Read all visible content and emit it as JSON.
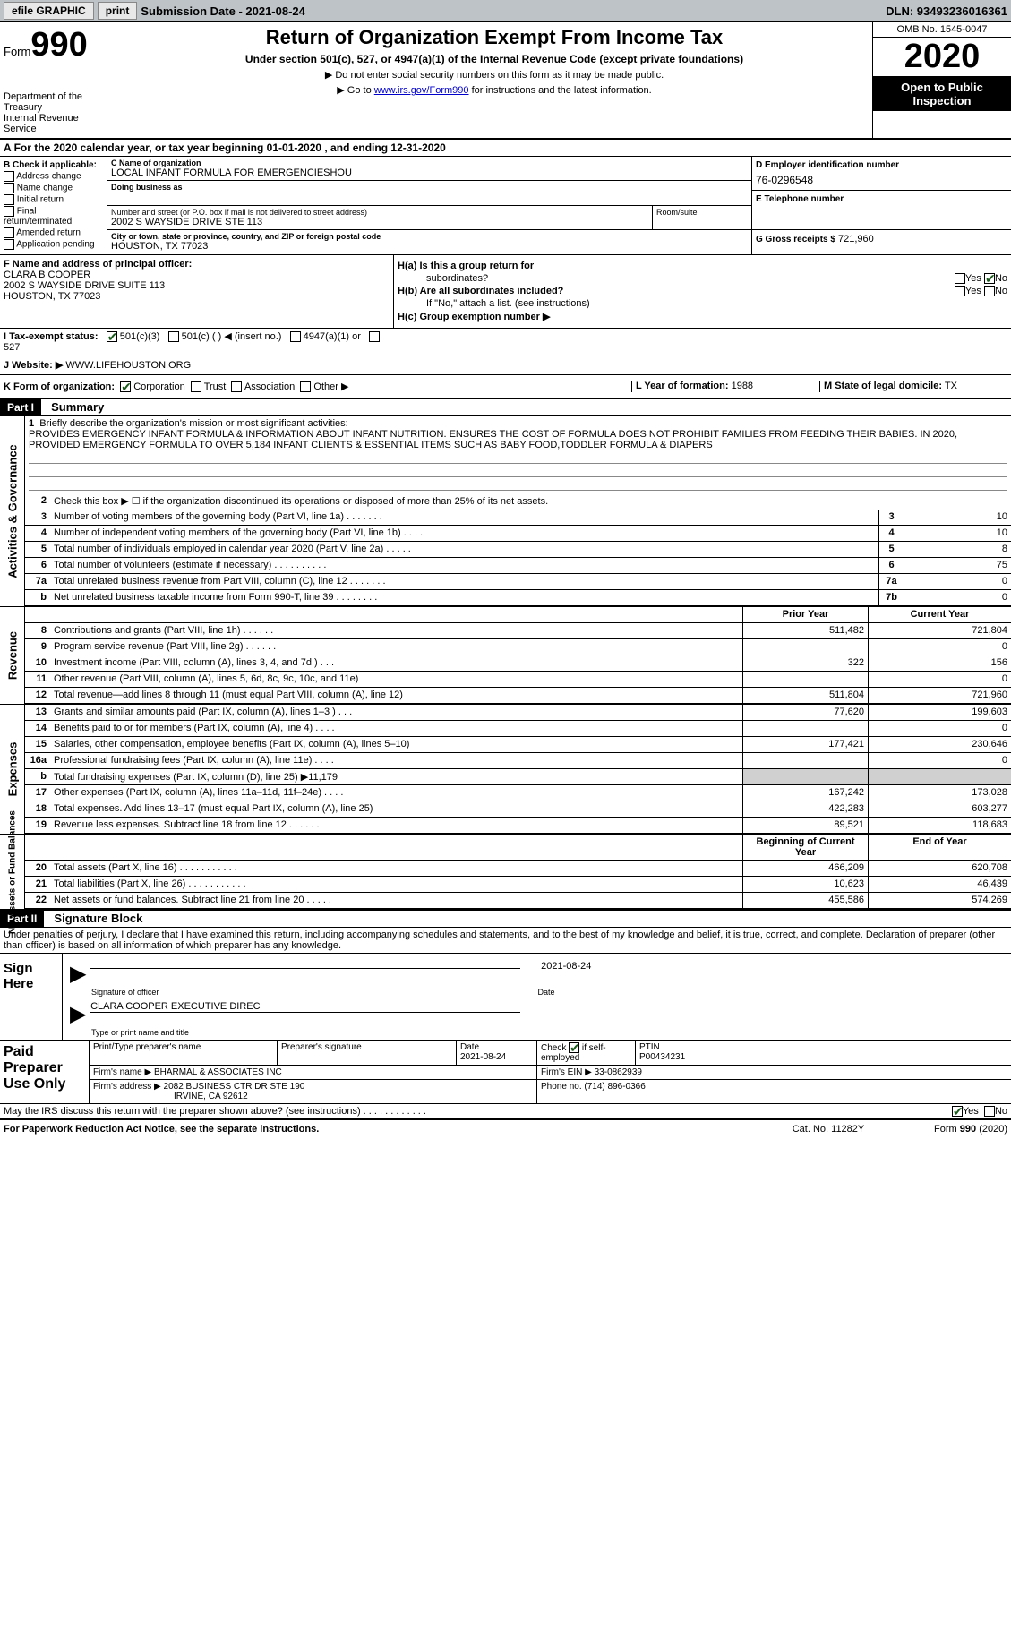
{
  "topbar": {
    "efile": "efile GRAPHIC",
    "print": "print",
    "submission": "Submission Date - 2021-08-24",
    "dln": "DLN: 93493236016361"
  },
  "header": {
    "form_prefix": "Form",
    "form_number": "990",
    "dept": "Department of the Treasury\nInternal Revenue Service",
    "title": "Return of Organization Exempt From Income Tax",
    "subtitle": "Under section 501(c), 527, or 4947(a)(1) of the Internal Revenue Code (except private foundations)",
    "instr1": "▶ Do not enter social security numbers on this form as it may be made public.",
    "instr2_pre": "▶ Go to ",
    "instr2_link": "www.irs.gov/Form990",
    "instr2_post": " for instructions and the latest information.",
    "omb": "OMB No. 1545-0047",
    "year": "2020",
    "inspect": "Open to Public Inspection"
  },
  "period": "For the 2020 calendar year, or tax year beginning 01-01-2020    , and ending 12-31-2020",
  "section_b": {
    "hd": "B Check if applicable:",
    "items": [
      "Address change",
      "Name change",
      "Initial return",
      "Final return/terminated",
      "Amended return",
      "Application pending"
    ]
  },
  "section_c": {
    "name_lbl": "C Name of organization",
    "name": "LOCAL INFANT FORMULA FOR EMERGENCIESHOU",
    "dba_lbl": "Doing business as",
    "dba": "",
    "street_lbl": "Number and street (or P.O. box if mail is not delivered to street address)",
    "street": "2002 S WAYSIDE DRIVE STE 113",
    "room_lbl": "Room/suite",
    "room": "",
    "city_lbl": "City or town, state or province, country, and ZIP or foreign postal code",
    "city": "HOUSTON, TX  77023"
  },
  "section_d": {
    "lbl": "D Employer identification number",
    "val": "76-0296548"
  },
  "section_e": {
    "lbl": "E Telephone number",
    "val": ""
  },
  "section_g": {
    "lbl": "G Gross receipts $",
    "val": "721,960"
  },
  "section_f": {
    "lbl": "F  Name and address of principal officer:",
    "name": "CLARA B COOPER",
    "addr1": "2002 S WAYSIDE DRIVE SUITE 113",
    "addr2": "HOUSTON, TX  77023"
  },
  "section_h": {
    "ha_lbl": "H(a)  Is this a group return for",
    "ha_sub": "subordinates?",
    "hb_lbl": "H(b)  Are all subordinates included?",
    "hb_note": "If \"No,\" attach a list. (see instructions)",
    "hc_lbl": "H(c)  Group exemption number ▶"
  },
  "row_i": {
    "lbl": "I   Tax-exempt status:",
    "opts": [
      "501(c)(3)",
      "501(c) (  ) ◀ (insert no.)",
      "4947(a)(1) or",
      "527"
    ]
  },
  "row_j": {
    "lbl": "J   Website: ▶",
    "val": "WWW.LIFEHOUSTON.ORG"
  },
  "row_k": {
    "lbl": "K Form of organization:",
    "opts": [
      "Corporation",
      "Trust",
      "Association",
      "Other ▶"
    ]
  },
  "row_l": {
    "lbl": "L Year of formation:",
    "val": "1988"
  },
  "row_m": {
    "lbl": "M State of legal domicile:",
    "val": "TX"
  },
  "part1": {
    "hdr": "Part I",
    "title": "Summary",
    "q1": "Briefly describe the organization's mission or most significant activities:",
    "mission": "PROVIDES EMERGENCY INFANT FORMULA & INFORMATION ABOUT INFANT NUTRITION. ENSURES THE COST OF FORMULA DOES NOT PROHIBIT FAMILIES FROM FEEDING THEIR BABIES. IN 2020, PROVIDED EMERGENCY FORMULA TO OVER 5,184 INFANT CLIENTS & ESSENTIAL ITEMS SUCH AS BABY FOOD,TODDLER FORMULA & DIAPERS",
    "q2": "Check this box ▶ ☐  if the organization discontinued its operations or disposed of more than 25% of its net assets.",
    "sidebar_ag": "Activities & Governance",
    "sidebar_rev": "Revenue",
    "sidebar_exp": "Expenses",
    "sidebar_na": "Net Assets or Fund Balances",
    "lines_gov": [
      {
        "n": "3",
        "t": "Number of voting members of the governing body (Part VI, line 1a)   .    .    .    .    .    .    .",
        "bn": "3",
        "v": "10"
      },
      {
        "n": "4",
        "t": "Number of independent voting members of the governing body (Part VI, line 1b)   .    .    .    .",
        "bn": "4",
        "v": "10"
      },
      {
        "n": "5",
        "t": "Total number of individuals employed in calendar year 2020 (Part V, line 2a)   .    .    .    .    .",
        "bn": "5",
        "v": "8"
      },
      {
        "n": "6",
        "t": "Total number of volunteers (estimate if necessary)    .    .    .    .    .    .    .    .    .    .",
        "bn": "6",
        "v": "75"
      },
      {
        "n": "7a",
        "t": "Total unrelated business revenue from Part VIII, column (C), line 12   .    .    .    .    .    .    .",
        "bn": "7a",
        "v": "0"
      },
      {
        "n": "b",
        "t": "Net unrelated business taxable income from Form 990-T, line 39    .    .    .    .    .    .    .    .",
        "bn": "7b",
        "v": "0"
      }
    ],
    "col_py": "Prior Year",
    "col_cy": "Current Year",
    "lines_rev": [
      {
        "n": "8",
        "t": "Contributions and grants (Part VIII, line 1h)    .    .    .    .    .    .",
        "py": "511,482",
        "cy": "721,804"
      },
      {
        "n": "9",
        "t": "Program service revenue (Part VIII, line 2g)    .    .    .    .    .    .",
        "py": "",
        "cy": "0"
      },
      {
        "n": "10",
        "t": "Investment income (Part VIII, column (A), lines 3, 4, and 7d )    .    .    .",
        "py": "322",
        "cy": "156"
      },
      {
        "n": "11",
        "t": "Other revenue (Part VIII, column (A), lines 5, 6d, 8c, 9c, 10c, and 11e)",
        "py": "",
        "cy": "0"
      },
      {
        "n": "12",
        "t": "Total revenue—add lines 8 through 11 (must equal Part VIII, column (A), line 12)",
        "py": "511,804",
        "cy": "721,960"
      }
    ],
    "lines_exp": [
      {
        "n": "13",
        "t": "Grants and similar amounts paid (Part IX, column (A), lines 1–3 )   .    .    .",
        "py": "77,620",
        "cy": "199,603"
      },
      {
        "n": "14",
        "t": "Benefits paid to or for members (Part IX, column (A), line 4)   .    .    .    .",
        "py": "",
        "cy": "0"
      },
      {
        "n": "15",
        "t": "Salaries, other compensation, employee benefits (Part IX, column (A), lines 5–10)",
        "py": "177,421",
        "cy": "230,646"
      },
      {
        "n": "16a",
        "t": "Professional fundraising fees (Part IX, column (A), line 11e)    .    .    .    .",
        "py": "",
        "cy": "0"
      },
      {
        "n": "b",
        "t": "Total fundraising expenses (Part IX, column (D), line 25) ▶11,179",
        "py": "shaded",
        "cy": "shaded"
      },
      {
        "n": "17",
        "t": "Other expenses (Part IX, column (A), lines 11a–11d, 11f–24e)    .    .    .    .",
        "py": "167,242",
        "cy": "173,028"
      },
      {
        "n": "18",
        "t": "Total expenses. Add lines 13–17 (must equal Part IX, column (A), line 25)",
        "py": "422,283",
        "cy": "603,277"
      },
      {
        "n": "19",
        "t": "Revenue less expenses. Subtract line 18 from line 12   .    .    .    .    .    .",
        "py": "89,521",
        "cy": "118,683"
      }
    ],
    "col_boy": "Beginning of Current Year",
    "col_eoy": "End of Year",
    "lines_na": [
      {
        "n": "20",
        "t": "Total assets (Part X, line 16)   .    .    .    .    .    .    .    .    .    .    .",
        "py": "466,209",
        "cy": "620,708"
      },
      {
        "n": "21",
        "t": "Total liabilities (Part X, line 26)   .    .    .    .    .    .    .    .    .    .    .",
        "py": "10,623",
        "cy": "46,439"
      },
      {
        "n": "22",
        "t": "Net assets or fund balances. Subtract line 21 from line 20   .    .    .    .    .",
        "py": "455,586",
        "cy": "574,269"
      }
    ]
  },
  "part2": {
    "hdr": "Part II",
    "title": "Signature Block",
    "penalty": "Under penalties of perjury, I declare that I have examined this return, including accompanying schedules and statements, and to the best of my knowledge and belief, it is true, correct, and complete. Declaration of preparer (other than officer) is based on all information of which preparer has any knowledge.",
    "sign_here": "Sign Here",
    "sig_officer": "Signature of officer",
    "sig_date": "2021-08-24",
    "date_lbl": "Date",
    "name_title": "CLARA COOPER  EXECUTIVE DIREC",
    "name_title_lbl": "Type or print name and title",
    "paid": "Paid Preparer Use Only",
    "prep_name_lbl": "Print/Type preparer's name",
    "prep_sig_lbl": "Preparer's signature",
    "prep_date_lbl": "Date",
    "prep_date": "2021-08-24",
    "prep_check_lbl": "Check ☑ if self-employed",
    "ptin_lbl": "PTIN",
    "ptin": "P00434231",
    "firm_name_lbl": "Firm's name     ▶",
    "firm_name": "BHARMAL & ASSOCIATES INC",
    "firm_ein_lbl": "Firm's EIN ▶",
    "firm_ein": "33-0862939",
    "firm_addr_lbl": "Firm's address ▶",
    "firm_addr1": "2082 BUSINESS CTR DR STE 190",
    "firm_addr2": "IRVINE, CA  92612",
    "phone_lbl": "Phone no.",
    "phone": "(714) 896-0366"
  },
  "discuss": "May the IRS discuss this return with the preparer shown above? (see instructions)    .    .    .    .    .    .    .    .    .    .    .    .",
  "footer": {
    "l": "For Paperwork Reduction Act Notice, see the separate instructions.",
    "c": "Cat. No. 11282Y",
    "r": "Form 990 (2020)"
  },
  "yes": "Yes",
  "no": "No"
}
